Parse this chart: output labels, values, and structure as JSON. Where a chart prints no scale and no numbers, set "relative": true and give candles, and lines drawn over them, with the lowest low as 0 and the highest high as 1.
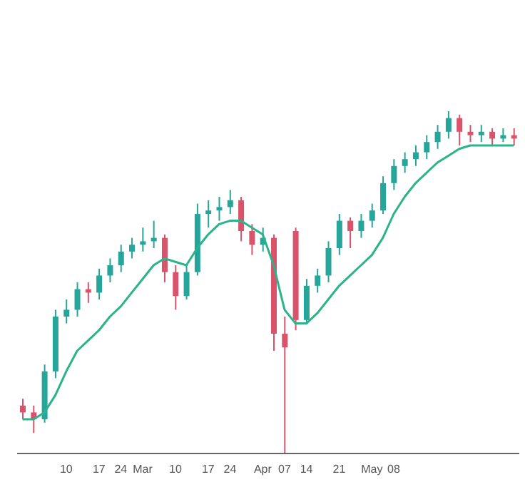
{
  "chart_data": {
    "type": "candlestick",
    "relative": true,
    "categories": [
      null,
      null,
      null,
      null,
      "10",
      null,
      null,
      "17",
      null,
      "24",
      null,
      "Mar",
      null,
      null,
      "10",
      null,
      null,
      "17",
      null,
      "24",
      null,
      null,
      "Apr",
      null,
      "07",
      null,
      "14",
      null,
      null,
      "21",
      null,
      null,
      "May",
      null,
      "08",
      null,
      null,
      null,
      null,
      null,
      null,
      null,
      null,
      null,
      null,
      null
    ],
    "colors": [
      "#d9536a",
      "#d9536a",
      "#26a69a",
      "#26a69a",
      "#26a69a",
      "#26a69a",
      "#d9536a",
      "#26a69a",
      "#26a69a",
      "#26a69a",
      "#26a69a",
      "#26a69a",
      "#26a69a",
      "#d9536a",
      "#d9536a",
      "#26a69a",
      "#26a69a",
      "#26a69a",
      "#26a69a",
      "#26a69a",
      "#d9536a",
      "#d9536a",
      "#26a69a",
      "#d9536a",
      "#d9536a",
      "#d9536a",
      "#26a69a",
      "#26a69a",
      "#26a69a",
      "#26a69a",
      "#d9536a",
      "#26a69a",
      "#26a69a",
      "#26a69a",
      "#26a69a",
      "#26a69a",
      "#26a69a",
      "#26a69a",
      "#26a69a",
      "#26a69a",
      "#d9536a",
      "#d9536a",
      "#26a69a",
      "#d9536a",
      "#26a69a",
      "#d9536a"
    ],
    "ohlc": [
      [
        0.14,
        0.16,
        0.1,
        0.12
      ],
      [
        0.12,
        0.14,
        0.06,
        0.1
      ],
      [
        0.1,
        0.26,
        0.09,
        0.24
      ],
      [
        0.24,
        0.42,
        0.22,
        0.4
      ],
      [
        0.4,
        0.45,
        0.38,
        0.42
      ],
      [
        0.42,
        0.5,
        0.4,
        0.48
      ],
      [
        0.48,
        0.5,
        0.44,
        0.47
      ],
      [
        0.47,
        0.54,
        0.45,
        0.52
      ],
      [
        0.52,
        0.57,
        0.5,
        0.55
      ],
      [
        0.55,
        0.61,
        0.53,
        0.59
      ],
      [
        0.59,
        0.63,
        0.57,
        0.61
      ],
      [
        0.61,
        0.66,
        0.59,
        0.62
      ],
      [
        0.62,
        0.68,
        0.6,
        0.63
      ],
      [
        0.63,
        0.64,
        0.5,
        0.53
      ],
      [
        0.53,
        0.55,
        0.42,
        0.46
      ],
      [
        0.46,
        0.55,
        0.45,
        0.53
      ],
      [
        0.53,
        0.73,
        0.52,
        0.7
      ],
      [
        0.7,
        0.74,
        0.66,
        0.71
      ],
      [
        0.71,
        0.75,
        0.68,
        0.72
      ],
      [
        0.72,
        0.77,
        0.7,
        0.74
      ],
      [
        0.74,
        0.75,
        0.62,
        0.65
      ],
      [
        0.65,
        0.67,
        0.58,
        0.61
      ],
      [
        0.61,
        0.66,
        0.59,
        0.63
      ],
      [
        0.63,
        0.64,
        0.3,
        0.35
      ],
      [
        0.35,
        0.4,
        0.0,
        0.31
      ],
      [
        0.65,
        0.66,
        0.36,
        0.39
      ],
      [
        0.39,
        0.51,
        0.38,
        0.49
      ],
      [
        0.49,
        0.54,
        0.47,
        0.52
      ],
      [
        0.52,
        0.62,
        0.5,
        0.6
      ],
      [
        0.6,
        0.7,
        0.58,
        0.68
      ],
      [
        0.68,
        0.69,
        0.6,
        0.65
      ],
      [
        0.65,
        0.7,
        0.63,
        0.68
      ],
      [
        0.68,
        0.73,
        0.66,
        0.71
      ],
      [
        0.71,
        0.81,
        0.7,
        0.79
      ],
      [
        0.79,
        0.86,
        0.77,
        0.84
      ],
      [
        0.84,
        0.88,
        0.82,
        0.86
      ],
      [
        0.86,
        0.9,
        0.84,
        0.88
      ],
      [
        0.88,
        0.93,
        0.86,
        0.91
      ],
      [
        0.91,
        0.96,
        0.89,
        0.94
      ],
      [
        0.94,
        1.0,
        0.92,
        0.98
      ],
      [
        0.98,
        0.99,
        0.9,
        0.94
      ],
      [
        0.94,
        0.96,
        0.91,
        0.93
      ],
      [
        0.93,
        0.96,
        0.91,
        0.94
      ],
      [
        0.94,
        0.95,
        0.9,
        0.92
      ],
      [
        0.92,
        0.95,
        0.91,
        0.93
      ],
      [
        0.93,
        0.95,
        0.9,
        0.92
      ]
    ],
    "series": [
      {
        "type": "line",
        "color": "#2bb38a",
        "values": [
          0.1,
          0.1,
          0.12,
          0.17,
          0.24,
          0.3,
          0.33,
          0.36,
          0.4,
          0.43,
          0.47,
          0.51,
          0.55,
          0.57,
          0.56,
          0.55,
          0.6,
          0.64,
          0.67,
          0.68,
          0.68,
          0.66,
          0.64,
          0.55,
          0.42,
          0.38,
          0.38,
          0.41,
          0.45,
          0.49,
          0.52,
          0.55,
          0.58,
          0.63,
          0.7,
          0.75,
          0.79,
          0.82,
          0.85,
          0.87,
          0.89,
          0.9,
          0.9,
          0.9,
          0.9,
          0.9
        ]
      }
    ]
  }
}
